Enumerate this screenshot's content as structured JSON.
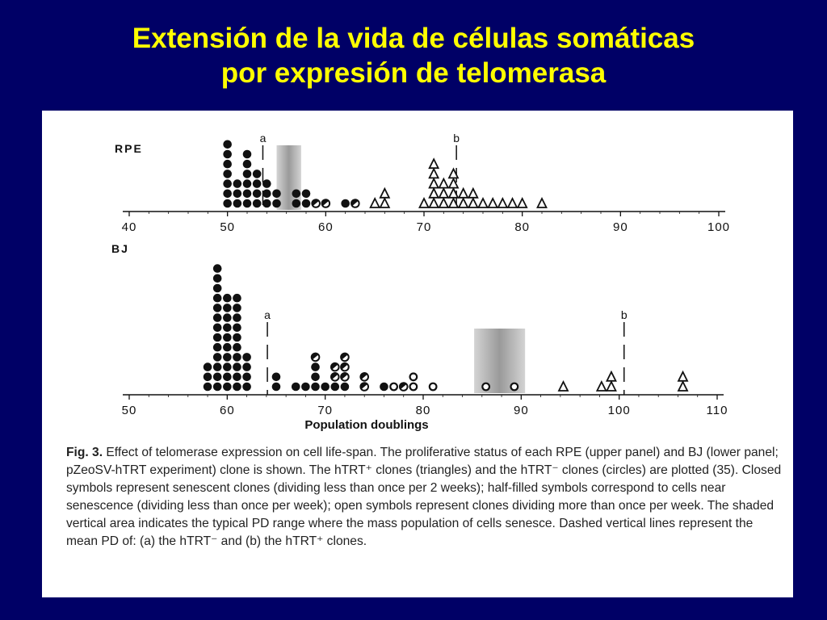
{
  "slide": {
    "title_line1": "Extensión de la vida de células somáticas",
    "title_line2": "por expresión de telomerasa"
  },
  "chart_data": [
    {
      "type": "scatter",
      "panel_label": "RPE",
      "xlim": [
        40,
        100
      ],
      "ticks": [
        "40",
        "50",
        "60",
        "70",
        "80",
        "90",
        "100"
      ],
      "shaded_range": [
        55,
        57.5
      ],
      "mean_lines": [
        {
          "label": "a",
          "pd": 53.6
        },
        {
          "label": "b",
          "pd": 73.3
        }
      ],
      "series": [
        {
          "symbol": "circle",
          "stacks": [
            {
              "pd": 50,
              "symbols": [
                "closed",
                "closed",
                "closed",
                "closed",
                "closed",
                "closed",
                "closed"
              ]
            },
            {
              "pd": 51,
              "symbols": [
                "closed",
                "closed",
                "closed"
              ]
            },
            {
              "pd": 52,
              "symbols": [
                "closed",
                "closed",
                "closed",
                "closed",
                "closed",
                "closed"
              ]
            },
            {
              "pd": 53,
              "symbols": [
                "closed",
                "closed",
                "closed",
                "closed"
              ]
            },
            {
              "pd": 54,
              "symbols": [
                "closed",
                "closed",
                "closed"
              ]
            },
            {
              "pd": 55,
              "symbols": [
                "closed",
                "closed"
              ]
            },
            {
              "pd": 57,
              "symbols": [
                "closed",
                "closed"
              ]
            },
            {
              "pd": 58,
              "symbols": [
                "closed",
                "closed"
              ]
            },
            {
              "pd": 59,
              "symbols": [
                "half"
              ]
            },
            {
              "pd": 60,
              "symbols": [
                "half"
              ]
            },
            {
              "pd": 62,
              "symbols": [
                "closed"
              ]
            },
            {
              "pd": 63,
              "symbols": [
                "half"
              ]
            }
          ]
        },
        {
          "symbol": "triangle",
          "stacks": [
            {
              "pd": 65,
              "symbols": [
                "open"
              ]
            },
            {
              "pd": 66,
              "symbols": [
                "open",
                "open"
              ]
            },
            {
              "pd": 70,
              "symbols": [
                "open"
              ]
            },
            {
              "pd": 71,
              "symbols": [
                "open",
                "open",
                "open",
                "open",
                "open"
              ]
            },
            {
              "pd": 72,
              "symbols": [
                "open",
                "open",
                "open"
              ]
            },
            {
              "pd": 73,
              "symbols": [
                "open",
                "open",
                "open",
                "open"
              ]
            },
            {
              "pd": 74,
              "symbols": [
                "open",
                "open"
              ]
            },
            {
              "pd": 75,
              "symbols": [
                "open",
                "open"
              ]
            },
            {
              "pd": 76,
              "symbols": [
                "open"
              ]
            },
            {
              "pd": 77,
              "symbols": [
                "open"
              ]
            },
            {
              "pd": 78,
              "symbols": [
                "open"
              ]
            },
            {
              "pd": 79,
              "symbols": [
                "open"
              ]
            },
            {
              "pd": 80,
              "symbols": [
                "open"
              ]
            },
            {
              "pd": 82,
              "symbols": [
                "open"
              ]
            }
          ]
        }
      ]
    },
    {
      "type": "scatter",
      "panel_label": "BJ",
      "xlabel": "Population doublings",
      "xlim": [
        50,
        110
      ],
      "ticks": [
        "50",
        "60",
        "70",
        "80",
        "90",
        "100",
        "110"
      ],
      "shaded_range": [
        85.2,
        90.4
      ],
      "mean_lines": [
        {
          "label": "a",
          "pd": 64.1
        },
        {
          "label": "b",
          "pd": 100.5
        }
      ],
      "series": [
        {
          "symbol": "circle",
          "stacks": [
            {
              "pd": 58,
              "symbols": [
                "closed",
                "closed",
                "closed"
              ]
            },
            {
              "pd": 59,
              "symbols": [
                "closed",
                "closed",
                "closed",
                "closed",
                "closed",
                "closed",
                "closed",
                "closed",
                "closed",
                "closed",
                "closed",
                "closed",
                "closed"
              ]
            },
            {
              "pd": 60,
              "symbols": [
                "closed",
                "closed",
                "closed",
                "closed",
                "closed",
                "closed",
                "closed",
                "closed",
                "closed",
                "closed"
              ]
            },
            {
              "pd": 61,
              "symbols": [
                "closed",
                "closed",
                "closed",
                "closed",
                "closed",
                "closed",
                "closed",
                "closed",
                "closed",
                "closed"
              ]
            },
            {
              "pd": 62,
              "symbols": [
                "closed",
                "closed",
                "closed",
                "closed"
              ]
            },
            {
              "pd": 65,
              "symbols": [
                "closed",
                "closed"
              ]
            },
            {
              "pd": 67,
              "symbols": [
                "closed"
              ]
            },
            {
              "pd": 68,
              "symbols": [
                "closed"
              ]
            },
            {
              "pd": 69,
              "symbols": [
                "closed",
                "closed",
                "closed",
                "half"
              ]
            },
            {
              "pd": 70,
              "symbols": [
                "closed"
              ]
            },
            {
              "pd": 71,
              "symbols": [
                "closed",
                "half",
                "half"
              ]
            },
            {
              "pd": 72,
              "symbols": [
                "closed",
                "half",
                "half",
                "half"
              ]
            },
            {
              "pd": 74,
              "symbols": [
                "half",
                "half"
              ]
            },
            {
              "pd": 76,
              "symbols": [
                "closed"
              ]
            },
            {
              "pd": 77,
              "symbols": [
                "open"
              ]
            },
            {
              "pd": 78,
              "symbols": [
                "half"
              ]
            },
            {
              "pd": 79,
              "symbols": [
                "open",
                "open"
              ]
            },
            {
              "pd": 81,
              "symbols": [
                "open"
              ]
            },
            {
              "pd": 86.4,
              "symbols": [
                "open"
              ]
            },
            {
              "pd": 89.3,
              "symbols": [
                "open"
              ]
            }
          ]
        },
        {
          "symbol": "triangle",
          "stacks": [
            {
              "pd": 94.3,
              "symbols": [
                "open"
              ]
            },
            {
              "pd": 98.2,
              "symbols": [
                "open"
              ]
            },
            {
              "pd": 99.2,
              "symbols": [
                "open",
                "open"
              ]
            },
            {
              "pd": 106.5,
              "symbols": [
                "open",
                "open"
              ]
            }
          ]
        }
      ]
    }
  ],
  "caption": {
    "label": "Fig. 3.",
    "text": "Effect of telomerase expression on cell life-span. The proliferative status of each RPE (upper panel) and BJ (lower panel; pZeoSV-hTRT experiment) clone is shown. The hTRT⁺ clones (triangles) and the hTRT⁻ clones (circles) are plotted (35). Closed symbols represent senescent clones (dividing less than once per 2 weeks); half-filled symbols correspond to cells near senescence (dividing less than once per week); open symbols represent clones dividing more than once per week. The shaded vertical area indicates the typical PD range where the mass population of cells senesce. Dashed vertical lines represent the mean PD of: (a) the hTRT⁻ and (b) the hTRT⁺ clones."
  },
  "colors": {
    "background": "#000066",
    "title": "#ffff00",
    "panel": "#ffffff",
    "ink": "#111111",
    "shade": "#9a9a9a"
  }
}
